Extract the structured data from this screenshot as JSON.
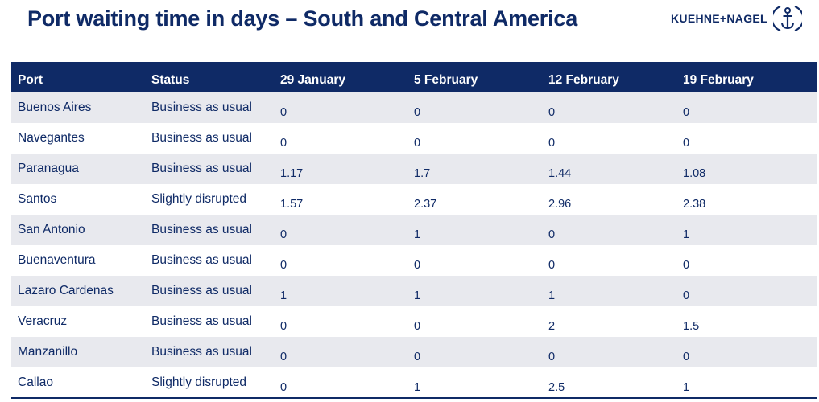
{
  "title": "Port waiting time in days – South and Central America",
  "logo": {
    "text": "KUEHNE+NAGEL",
    "icon": "anchor-icon",
    "color": "#0f2a66"
  },
  "colors": {
    "brand_navy": "#0f2a66",
    "row_stripe": "#e8e9ee"
  },
  "table": {
    "headers": [
      "Port",
      "Status",
      "29 January",
      "5 February",
      "12 February",
      "19 February"
    ],
    "rows": [
      {
        "port": "Buenos Aires",
        "status": "Business as usual",
        "values": [
          "0",
          "0",
          "0",
          "0"
        ]
      },
      {
        "port": "Navegantes",
        "status": "Business as usual",
        "values": [
          "0",
          "0",
          "0",
          "0"
        ]
      },
      {
        "port": "Paranagua",
        "status": "Business as usual",
        "values": [
          "1.17",
          "1.7",
          "1.44",
          "1.08"
        ]
      },
      {
        "port": "Santos",
        "status": "Slightly disrupted",
        "values": [
          "1.57",
          "2.37",
          "2.96",
          "2.38"
        ]
      },
      {
        "port": "San Antonio",
        "status": "Business as usual",
        "values": [
          "0",
          "1",
          "0",
          "1"
        ]
      },
      {
        "port": "Buenaventura",
        "status": "Business as usual",
        "values": [
          "0",
          "0",
          "0",
          "0"
        ]
      },
      {
        "port": "Lazaro Cardenas",
        "status": "Business as usual",
        "values": [
          "1",
          "1",
          "1",
          "0"
        ]
      },
      {
        "port": "Veracruz",
        "status": "Business as usual",
        "values": [
          "0",
          "0",
          "2",
          "1.5"
        ]
      },
      {
        "port": "Manzanillo",
        "status": "Business as usual",
        "values": [
          "0",
          "0",
          "0",
          "0"
        ]
      },
      {
        "port": "Callao",
        "status": "Slightly disrupted",
        "values": [
          "0",
          "1",
          "2.5",
          "1"
        ]
      }
    ]
  }
}
